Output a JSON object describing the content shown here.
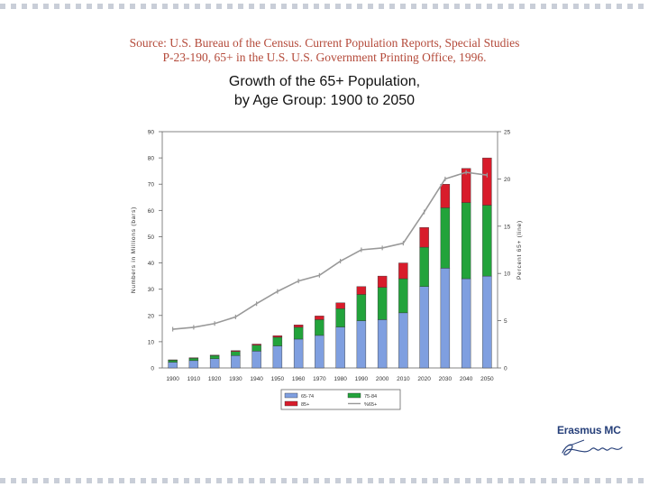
{
  "source": {
    "line1": "Source: U.S. Bureau of the Census. Current Population Reports, Special Studies",
    "line2": "P-23-190, 65+ in the U.S. U.S. Government Printing Office, 1996."
  },
  "logo": {
    "name": "Erasmus MC",
    "script": "Erafmus"
  },
  "colors": {
    "age_65_74": "#7f9fe0",
    "age_75_84": "#22a33b",
    "age_85_plus": "#d81c2b",
    "pct_line": "#999999",
    "accent_text": "#b44a3a"
  },
  "chart_data": {
    "type": "bar",
    "stacked": true,
    "title": "Growth of the 65+ Population, by Age Group: 1900 to 2050",
    "title_lines": [
      "Growth of the 65+ Population,",
      "by Age Group:  1900 to 2050"
    ],
    "categories": [
      "1900",
      "1910",
      "1920",
      "1930",
      "1940",
      "1950",
      "1960",
      "1970",
      "1980",
      "1990",
      "2000",
      "2010",
      "2020",
      "2030",
      "2040",
      "2050"
    ],
    "series": [
      {
        "name": "65-74",
        "axis": "left",
        "values": [
          2.2,
          2.8,
          3.5,
          4.7,
          6.4,
          8.4,
          11.0,
          12.4,
          15.6,
          18.0,
          18.4,
          21.0,
          31.0,
          38.0,
          34.0,
          35.0
        ]
      },
      {
        "name": "75-84",
        "axis": "left",
        "values": [
          0.8,
          0.9,
          1.2,
          1.6,
          2.3,
          3.3,
          4.5,
          6.0,
          7.0,
          10.0,
          12.3,
          13.0,
          15.0,
          23.0,
          29.0,
          27.0
        ]
      },
      {
        "name": "85+",
        "axis": "left",
        "values": [
          0.1,
          0.2,
          0.2,
          0.3,
          0.4,
          0.6,
          0.9,
          1.4,
          2.2,
          3.0,
          4.3,
          6.0,
          7.5,
          9.0,
          13.0,
          18.0
        ]
      }
    ],
    "line_series": {
      "name": "%65+",
      "axis": "right",
      "values": [
        4.1,
        4.3,
        4.7,
        5.4,
        6.8,
        8.1,
        9.2,
        9.8,
        11.3,
        12.5,
        12.7,
        13.2,
        16.5,
        20.0,
        20.7,
        20.4
      ]
    },
    "legend": [
      {
        "label": "65-74",
        "kind": "bar",
        "series": 0
      },
      {
        "label": "75-84",
        "kind": "bar",
        "series": 1
      },
      {
        "label": "85+",
        "kind": "bar",
        "series": 2
      },
      {
        "label": "%65+",
        "kind": "line"
      }
    ],
    "legend_position": "bottom-center",
    "ylabel": "Numbers in Millions (bars)",
    "y2label": "Percent 65+ (line)",
    "xlabel": "",
    "ylim": [
      0,
      90
    ],
    "y_ticks": [
      "0",
      "10",
      "20",
      "30",
      "40",
      "50",
      "60",
      "70",
      "80",
      "90"
    ],
    "y2lim": [
      0,
      25
    ],
    "y2_ticks": [
      "0",
      "5",
      "10",
      "15",
      "20",
      "25"
    ],
    "grid": false
  }
}
